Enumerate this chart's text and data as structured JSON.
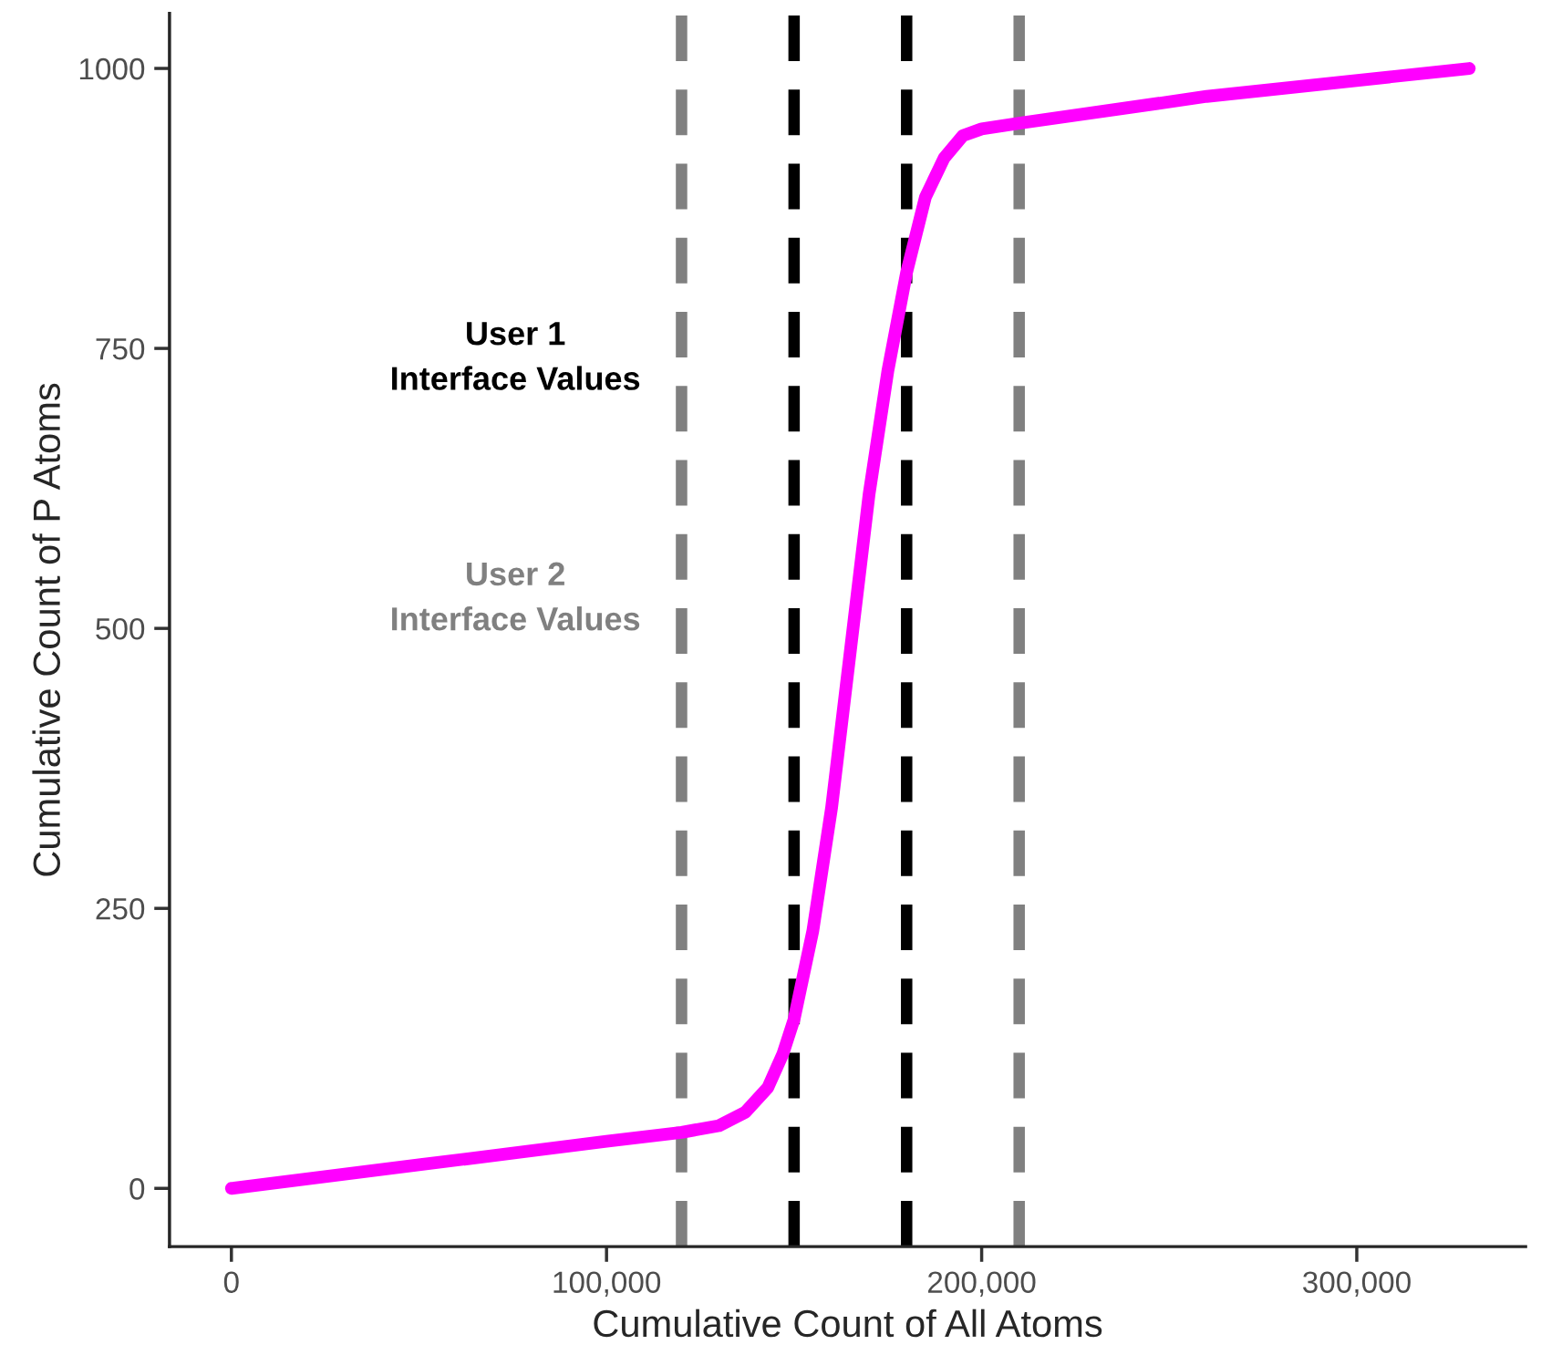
{
  "chart_data": {
    "type": "line",
    "xlabel": "Cumulative Count of All Atoms",
    "ylabel": "Cumulative Count of P Atoms",
    "series": [
      {
        "color": "#ff00ff",
        "x": [
          0,
          50000,
          100000,
          120000,
          130000,
          137000,
          143000,
          147000,
          150000,
          155000,
          160000,
          165000,
          170000,
          175000,
          180000,
          185000,
          190000,
          195000,
          200000,
          210000,
          260000,
          330000
        ],
        "values": [
          0,
          21,
          42,
          50,
          56,
          68,
          90,
          120,
          151,
          230,
          340,
          480,
          620,
          730,
          818,
          885,
          920,
          940,
          946,
          951,
          975,
          1000
        ]
      }
    ],
    "xlim": [
      -16500,
      345000
    ],
    "ylim": [
      -52,
      1049
    ],
    "xticks": [
      0,
      {
        "value": 100000,
        "label": "100,000"
      },
      {
        "value": 200000,
        "label": "200,000"
      },
      {
        "value": 300000,
        "label": "300,000"
      }
    ],
    "yticks": [
      0,
      250,
      500,
      750,
      1000
    ],
    "ref_lines": [
      {
        "axis": "x",
        "value": 150000,
        "color": "#000000",
        "line_style": "dashed"
      },
      {
        "axis": "x",
        "value": 180000,
        "color": "#000000",
        "line_style": "dashed"
      },
      {
        "axis": "x",
        "value": 120000,
        "color": "#808080",
        "line_style": "dashed"
      },
      {
        "axis": "x",
        "value": 210000,
        "color": "#808080",
        "line_style": "dashed"
      }
    ],
    "annotations": [
      "User 1\nInterface Values",
      "User 2\nInterface Values"
    ],
    "grid": false,
    "legend": false,
    "marker": "none",
    "line_style": "solid"
  }
}
